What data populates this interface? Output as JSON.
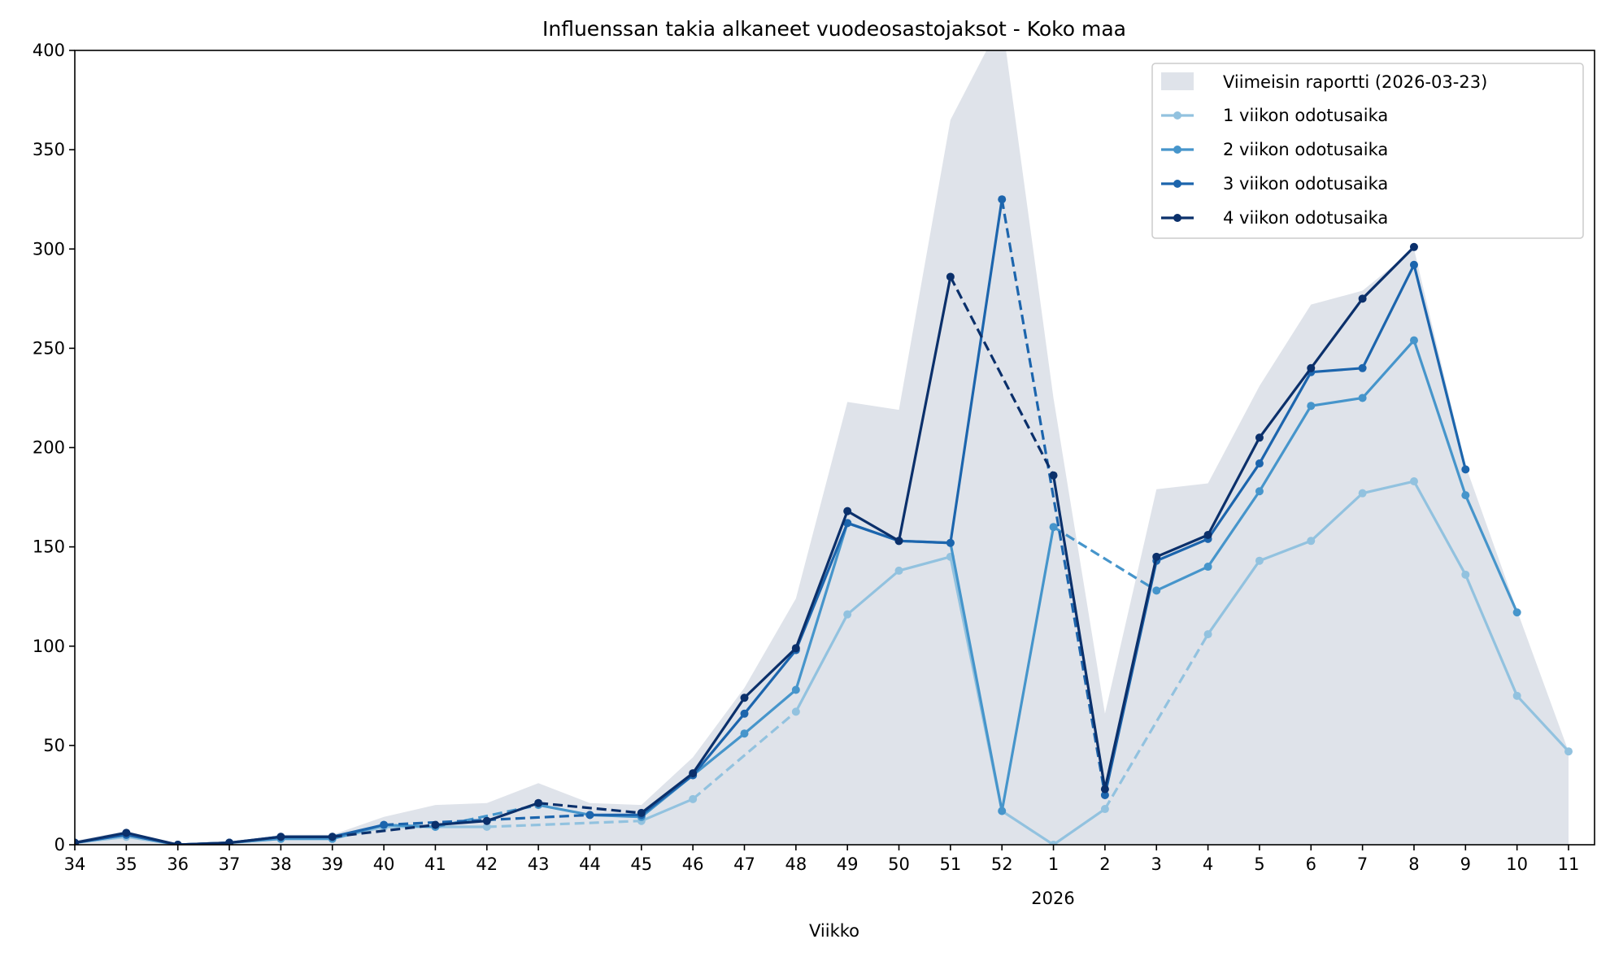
{
  "chart_data": {
    "type": "line",
    "title": "Influenssan takia alkaneet vuodeosastojaksot - Koko maa",
    "xlabel": "Viikko",
    "ylabel": "",
    "year_label": "2026",
    "ylim": [
      0,
      400
    ],
    "yticks": [
      0,
      50,
      100,
      150,
      200,
      250,
      300,
      350,
      400
    ],
    "categories": [
      "34",
      "35",
      "36",
      "37",
      "38",
      "39",
      "40",
      "41",
      "42",
      "43",
      "44",
      "45",
      "46",
      "47",
      "48",
      "49",
      "50",
      "51",
      "52",
      "1",
      "2",
      "3",
      "4",
      "5",
      "6",
      "7",
      "8",
      "9",
      "10",
      "11"
    ],
    "legend_position": "top-right",
    "area": {
      "name": "Viimeisin raportti (2026-03-23)",
      "color": "#dfe3ea",
      "values": [
        2,
        7,
        0,
        1,
        5,
        5,
        14,
        20,
        21,
        31,
        21,
        20,
        44,
        79,
        124,
        223,
        219,
        365,
        415,
        225,
        66,
        179,
        182,
        231,
        272,
        279,
        300,
        191,
        118,
        47
      ]
    },
    "series": [
      {
        "name": "1 viikon odotusaika",
        "color": "#92c2df",
        "values": [
          1,
          4,
          0,
          1,
          3,
          3,
          9,
          9,
          9,
          null,
          null,
          12,
          23,
          null,
          67,
          116,
          138,
          145,
          17,
          0,
          18,
          null,
          106,
          143,
          153,
          177,
          183,
          136,
          75,
          47
        ]
      },
      {
        "name": "2 viikon odotusaika",
        "color": "#4695cb",
        "values": [
          1,
          5,
          0,
          1,
          3,
          3,
          10,
          9,
          null,
          20,
          15,
          14,
          35,
          56,
          78,
          162,
          153,
          152,
          17,
          160,
          null,
          128,
          140,
          178,
          221,
          225,
          254,
          176,
          117,
          null
        ]
      },
      {
        "name": "3 viikon odotusaika",
        "color": "#1c65ad",
        "values": [
          1,
          5,
          0,
          1,
          4,
          4,
          10,
          null,
          null,
          null,
          15,
          15,
          35,
          66,
          98,
          162,
          153,
          152,
          325,
          null,
          25,
          143,
          154,
          192,
          238,
          240,
          292,
          189,
          null,
          null
        ]
      },
      {
        "name": "4 viikon odotusaika",
        "color": "#0b306b",
        "values": [
          1,
          6,
          0,
          1,
          4,
          4,
          null,
          10,
          12,
          21,
          null,
          16,
          36,
          74,
          99,
          168,
          153,
          286,
          null,
          186,
          28,
          145,
          156,
          205,
          240,
          275,
          301,
          null,
          null,
          null
        ]
      }
    ]
  }
}
